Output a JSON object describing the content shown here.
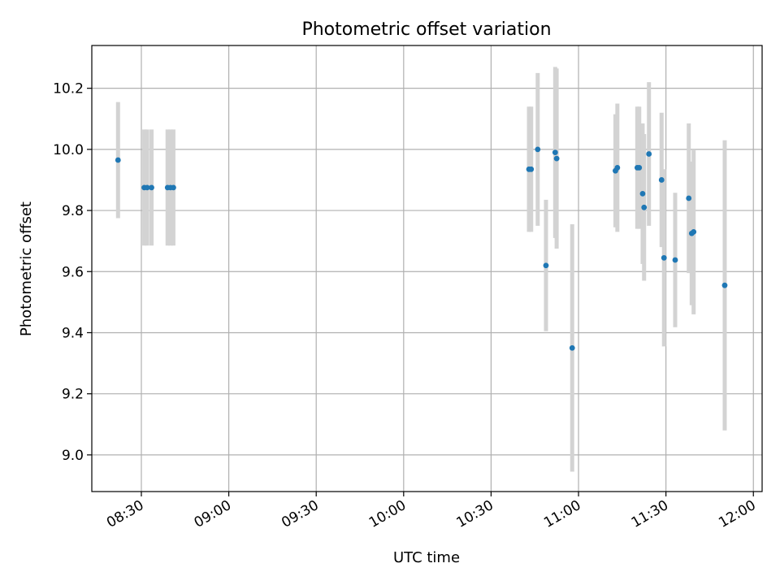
{
  "chart_data": {
    "type": "scatter",
    "title": "Photometric offset variation",
    "xlabel": "UTC time",
    "ylabel": "Photometric offset",
    "xlim": [
      "08:13",
      "12:03"
    ],
    "ylim": [
      8.88,
      10.34
    ],
    "x_ticks": [
      "08:30",
      "09:00",
      "09:30",
      "10:00",
      "10:30",
      "11:00",
      "11:30",
      "12:00"
    ],
    "y_ticks": [
      "9.0",
      "9.2",
      "9.4",
      "9.6",
      "9.8",
      "10.0",
      "10.2"
    ],
    "grid": true,
    "colors": {
      "points": "#1f77b4",
      "error_bars": "#d3d3d3",
      "grid": "#b0b0b0"
    },
    "points": [
      {
        "x": "08:22:00",
        "y": 9.965,
        "err": 0.19
      },
      {
        "x": "08:31:00",
        "y": 9.875,
        "err": 0.19
      },
      {
        "x": "08:32:00",
        "y": 9.875,
        "err": 0.19
      },
      {
        "x": "08:33:30",
        "y": 9.875,
        "err": 0.19
      },
      {
        "x": "08:39:00",
        "y": 9.875,
        "err": 0.19
      },
      {
        "x": "08:40:00",
        "y": 9.875,
        "err": 0.19
      },
      {
        "x": "08:41:00",
        "y": 9.875,
        "err": 0.19
      },
      {
        "x": "10:43:00",
        "y": 9.935,
        "err": 0.205
      },
      {
        "x": "10:43:45",
        "y": 9.935,
        "err": 0.205
      },
      {
        "x": "10:46:00",
        "y": 10.0,
        "err": 0.25
      },
      {
        "x": "10:48:50",
        "y": 9.62,
        "err": 0.215
      },
      {
        "x": "10:52:00",
        "y": 9.99,
        "err": 0.28
      },
      {
        "x": "10:52:30",
        "y": 9.97,
        "err": 0.295
      },
      {
        "x": "10:57:50",
        "y": 9.35,
        "err": 0.405
      },
      {
        "x": "11:12:40",
        "y": 9.93,
        "err": 0.185
      },
      {
        "x": "11:13:20",
        "y": 9.94,
        "err": 0.21
      },
      {
        "x": "11:20:10",
        "y": 9.94,
        "err": 0.2
      },
      {
        "x": "11:20:50",
        "y": 9.94,
        "err": 0.2
      },
      {
        "x": "11:22:00",
        "y": 9.855,
        "err": 0.23
      },
      {
        "x": "11:22:30",
        "y": 9.81,
        "err": 0.24
      },
      {
        "x": "11:24:10",
        "y": 9.985,
        "err": 0.235
      },
      {
        "x": "11:28:30",
        "y": 9.9,
        "err": 0.22
      },
      {
        "x": "11:29:20",
        "y": 9.645,
        "err": 0.29
      },
      {
        "x": "11:33:10",
        "y": 9.638,
        "err": 0.22
      },
      {
        "x": "11:37:50",
        "y": 9.84,
        "err": 0.245
      },
      {
        "x": "11:38:50",
        "y": 9.725,
        "err": 0.235
      },
      {
        "x": "11:39:30",
        "y": 9.73,
        "err": 0.27
      },
      {
        "x": "11:50:10",
        "y": 9.555,
        "err": 0.475
      }
    ]
  }
}
